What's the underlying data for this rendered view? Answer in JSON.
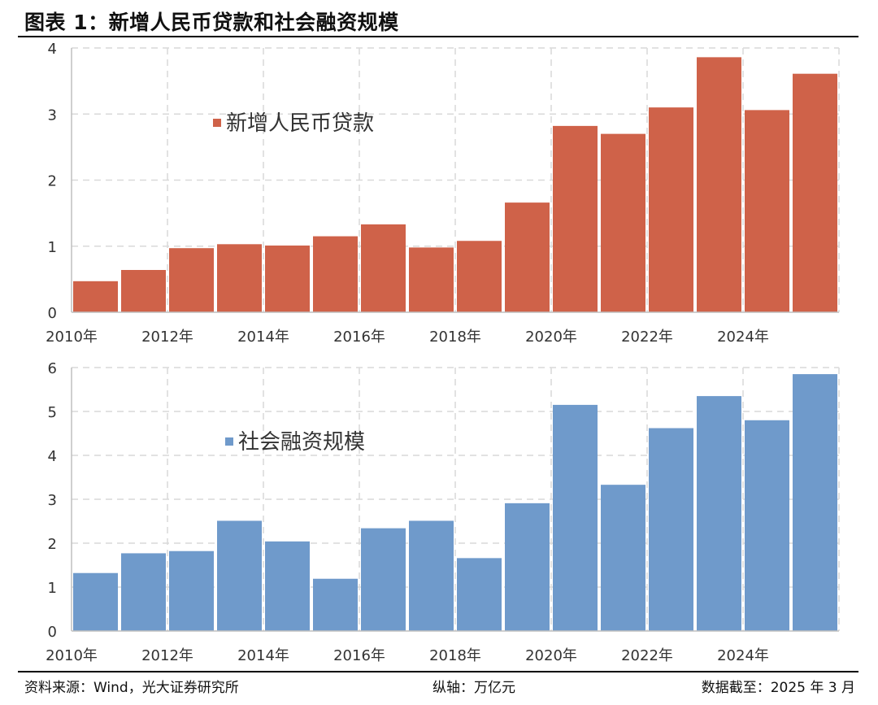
{
  "title": "图表 1：新增人民币贷款和社会融资规模",
  "footer": {
    "source": "资料来源：Wind，光大证券研究所",
    "unit": "纵轴：万亿元",
    "date": "数据截至：2025 年 3 月"
  },
  "colors": {
    "loans": "#CF6249",
    "tsf": "#6F9ACB",
    "grid": "#D9D9D9",
    "axis": "#BFBFBF"
  },
  "chart_data": [
    {
      "type": "bar",
      "legend": "新增人民币贷款",
      "categories": [
        "2010",
        "2011",
        "2012",
        "2013",
        "2014",
        "2015",
        "2016",
        "2017",
        "2018",
        "2019",
        "2020",
        "2021",
        "2022",
        "2023",
        "2024",
        "2025"
      ],
      "x_tick_labels": [
        "2010年",
        "2012年",
        "2014年",
        "2016年",
        "2018年",
        "2020年",
        "2022年",
        "2024年"
      ],
      "values": [
        0.47,
        0.64,
        0.97,
        1.03,
        1.01,
        1.15,
        1.33,
        0.98,
        1.08,
        1.66,
        2.82,
        2.7,
        3.1,
        3.86,
        3.06,
        3.61
      ],
      "ylim": [
        0,
        4
      ],
      "yticks": [
        0,
        1,
        2,
        3,
        4
      ],
      "grid": true,
      "legend_position": "upper-left"
    },
    {
      "type": "bar",
      "legend": "社会融资规模",
      "categories": [
        "2010",
        "2011",
        "2012",
        "2013",
        "2014",
        "2015",
        "2016",
        "2017",
        "2018",
        "2019",
        "2020",
        "2021",
        "2022",
        "2023",
        "2024",
        "2025"
      ],
      "x_tick_labels": [
        "2010年",
        "2012年",
        "2014年",
        "2016年",
        "2018年",
        "2020年",
        "2022年",
        "2024年"
      ],
      "values": [
        1.32,
        1.77,
        1.82,
        2.51,
        2.04,
        1.19,
        2.34,
        2.51,
        1.66,
        2.91,
        5.15,
        3.33,
        4.62,
        5.35,
        4.8,
        5.85
      ],
      "ylim": [
        0,
        6
      ],
      "yticks": [
        0,
        1,
        2,
        3,
        4,
        5,
        6
      ],
      "grid": true,
      "legend_position": "upper-left"
    }
  ]
}
